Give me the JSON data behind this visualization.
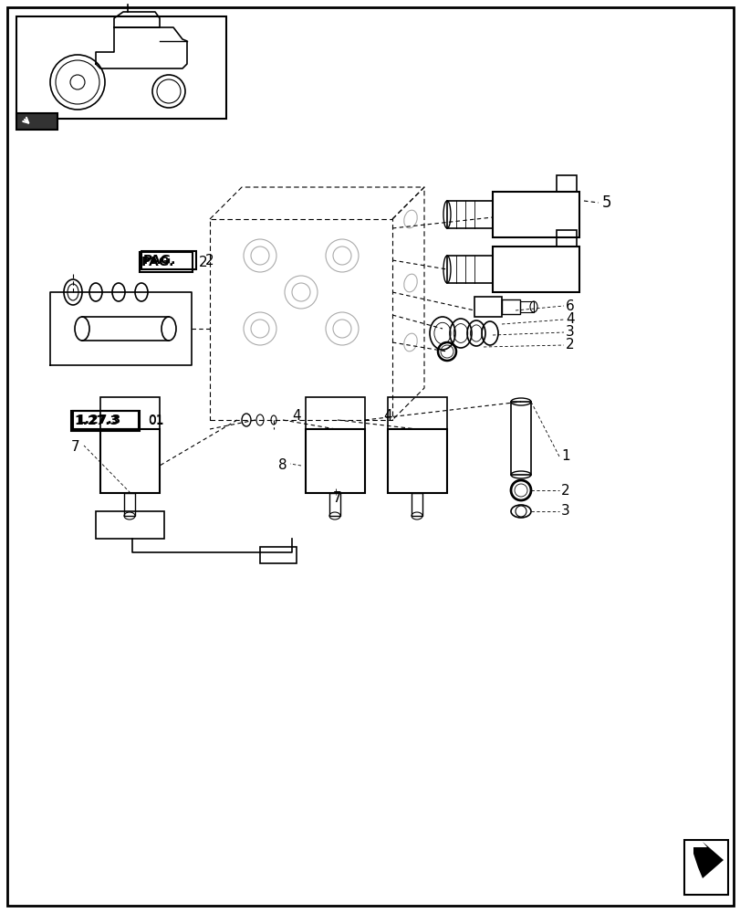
{
  "bg_color": "#ffffff",
  "border_color": "#000000",
  "line_color": "#000000",
  "part_labels": {
    "PAG_label": "PAG.",
    "PAG_num": "2",
    "ref_label": "1.27.3",
    "ref_num2": "01"
  },
  "callout_numbers": {
    "top_right_5": "5",
    "mid_right_6": "6",
    "mid_right_4": "4",
    "mid_right_3": "3",
    "mid_right_2a": "2",
    "bot_right_1": "1",
    "bot_right_2": "2",
    "bot_right_3": "3",
    "left_7": "7",
    "bot_8": "8",
    "bot_7b": "7",
    "bot_4": "4"
  },
  "figsize": [
    8.12,
    10.0
  ],
  "dpi": 100
}
